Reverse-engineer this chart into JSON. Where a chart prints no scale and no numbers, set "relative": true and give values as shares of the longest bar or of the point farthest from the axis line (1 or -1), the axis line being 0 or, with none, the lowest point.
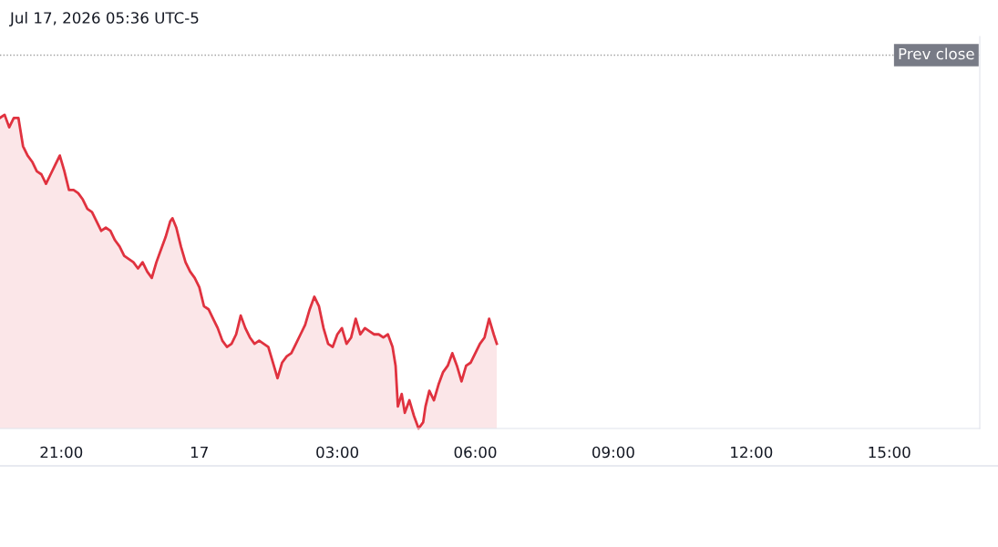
{
  "chart_data": {
    "type": "area",
    "title": "Jul 17, 2026 05:36 UTC-5",
    "relative": true,
    "grid": false,
    "xlim": [
      "2026-07-16T19:40",
      "2026-07-17T16:58"
    ],
    "xticks": [
      {
        "value": "2026-07-16T21:00",
        "label": "21:00"
      },
      {
        "value": "2026-07-17T00:00",
        "label": "17"
      },
      {
        "value": "2026-07-17T03:00",
        "label": "03:00"
      },
      {
        "value": "2026-07-17T06:00",
        "label": "06:00"
      },
      {
        "value": "2026-07-17T09:00",
        "label": "09:00"
      },
      {
        "value": "2026-07-17T12:00",
        "label": "12:00"
      },
      {
        "value": "2026-07-17T15:00",
        "label": "15:00"
      }
    ],
    "tick_labels": "x",
    "ref_lines": [
      {
        "axis": "y",
        "value": 1.19,
        "label": "Prev close",
        "color": "#9e9e9e",
        "line_style": "dotted"
      }
    ],
    "series": [
      {
        "color": "#e0323f",
        "x": [
          "2026-07-16T19:40",
          "2026-07-16T19:46",
          "2026-07-16T19:52",
          "2026-07-16T19:58",
          "2026-07-16T20:04",
          "2026-07-16T20:10",
          "2026-07-16T20:16",
          "2026-07-16T20:22",
          "2026-07-16T20:28",
          "2026-07-16T20:34",
          "2026-07-16T20:40",
          "2026-07-16T20:46",
          "2026-07-16T20:52",
          "2026-07-16T20:58",
          "2026-07-16T21:04",
          "2026-07-16T21:10",
          "2026-07-16T21:16",
          "2026-07-16T21:22",
          "2026-07-16T21:28",
          "2026-07-16T21:34",
          "2026-07-16T21:40",
          "2026-07-16T21:46",
          "2026-07-16T21:52",
          "2026-07-16T21:58",
          "2026-07-16T22:04",
          "2026-07-16T22:10",
          "2026-07-16T22:16",
          "2026-07-16T22:22",
          "2026-07-16T22:28",
          "2026-07-16T22:34",
          "2026-07-16T22:40",
          "2026-07-16T22:46",
          "2026-07-16T22:52",
          "2026-07-16T22:58",
          "2026-07-16T23:04",
          "2026-07-16T23:10",
          "2026-07-16T23:16",
          "2026-07-16T23:22",
          "2026-07-16T23:25",
          "2026-07-16T23:30",
          "2026-07-16T23:36",
          "2026-07-16T23:42",
          "2026-07-16T23:48",
          "2026-07-16T23:54",
          "2026-07-17T00:00",
          "2026-07-17T00:06",
          "2026-07-17T00:12",
          "2026-07-17T00:18",
          "2026-07-17T00:24",
          "2026-07-17T00:30",
          "2026-07-17T00:36",
          "2026-07-17T00:42",
          "2026-07-17T00:48",
          "2026-07-17T00:54",
          "2026-07-17T01:00",
          "2026-07-17T01:06",
          "2026-07-17T01:12",
          "2026-07-17T01:18",
          "2026-07-17T01:24",
          "2026-07-17T01:30",
          "2026-07-17T01:36",
          "2026-07-17T01:42",
          "2026-07-17T01:48",
          "2026-07-17T01:54",
          "2026-07-17T02:00",
          "2026-07-17T02:06",
          "2026-07-17T02:12",
          "2026-07-17T02:18",
          "2026-07-17T02:24",
          "2026-07-17T02:30",
          "2026-07-17T02:36",
          "2026-07-17T02:42",
          "2026-07-17T02:48",
          "2026-07-17T02:54",
          "2026-07-17T03:00",
          "2026-07-17T03:06",
          "2026-07-17T03:12",
          "2026-07-17T03:18",
          "2026-07-17T03:24",
          "2026-07-17T03:30",
          "2026-07-17T03:36",
          "2026-07-17T03:42",
          "2026-07-17T03:48",
          "2026-07-17T03:54",
          "2026-07-17T04:00",
          "2026-07-17T04:06",
          "2026-07-17T04:12",
          "2026-07-17T04:16",
          "2026-07-17T04:19",
          "2026-07-17T04:24",
          "2026-07-17T04:28",
          "2026-07-17T04:34",
          "2026-07-17T04:40",
          "2026-07-17T04:46",
          "2026-07-17T04:52",
          "2026-07-17T04:55",
          "2026-07-17T05:00",
          "2026-07-17T05:06",
          "2026-07-17T05:12",
          "2026-07-17T05:18",
          "2026-07-17T05:24",
          "2026-07-17T05:30",
          "2026-07-17T05:36",
          "2026-07-17T05:42",
          "2026-07-17T05:48",
          "2026-07-17T05:54",
          "2026-07-17T06:00",
          "2026-07-17T06:06",
          "2026-07-17T06:12",
          "2026-07-17T06:18",
          "2026-07-17T06:24",
          "2026-07-17T06:28"
        ],
        "values": [
          0.99,
          1.0,
          0.96,
          0.99,
          0.99,
          0.9,
          0.87,
          0.85,
          0.82,
          0.81,
          0.78,
          0.81,
          0.84,
          0.87,
          0.82,
          0.76,
          0.76,
          0.75,
          0.73,
          0.7,
          0.69,
          0.66,
          0.63,
          0.64,
          0.63,
          0.6,
          0.58,
          0.55,
          0.54,
          0.53,
          0.51,
          0.53,
          0.5,
          0.48,
          0.53,
          0.57,
          0.61,
          0.66,
          0.67,
          0.64,
          0.58,
          0.53,
          0.5,
          0.48,
          0.45,
          0.39,
          0.38,
          0.35,
          0.32,
          0.28,
          0.26,
          0.27,
          0.3,
          0.36,
          0.32,
          0.29,
          0.27,
          0.28,
          0.27,
          0.26,
          0.21,
          0.16,
          0.21,
          0.23,
          0.24,
          0.27,
          0.3,
          0.33,
          0.38,
          0.42,
          0.39,
          0.32,
          0.27,
          0.26,
          0.3,
          0.32,
          0.27,
          0.29,
          0.35,
          0.3,
          0.32,
          0.31,
          0.3,
          0.3,
          0.29,
          0.3,
          0.26,
          0.2,
          0.07,
          0.11,
          0.05,
          0.09,
          0.04,
          0.0,
          0.02,
          0.07,
          0.12,
          0.09,
          0.14,
          0.18,
          0.2,
          0.24,
          0.2,
          0.15,
          0.2,
          0.21,
          0.24,
          0.27,
          0.29,
          0.35,
          0.3,
          0.27
        ]
      }
    ]
  }
}
